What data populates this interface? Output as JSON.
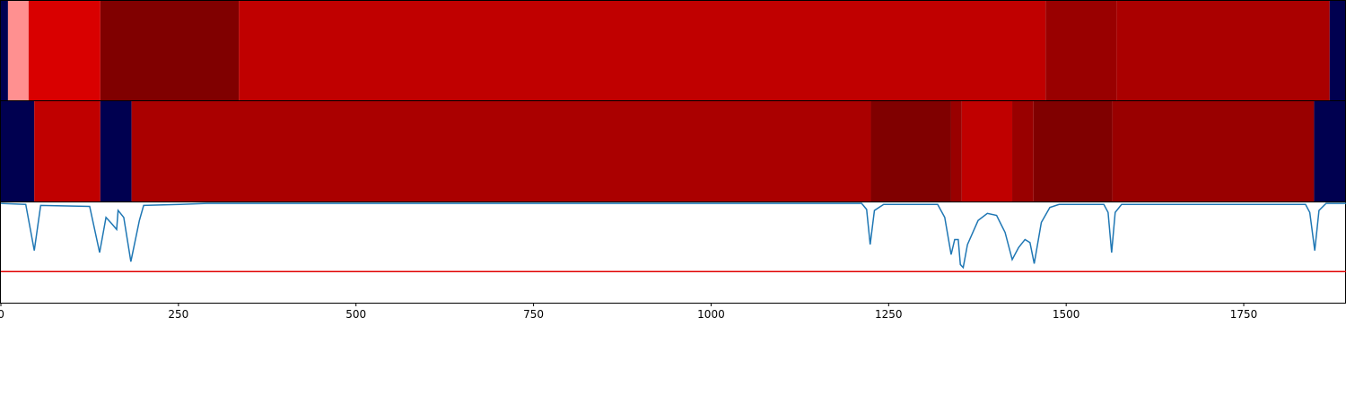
{
  "chart_data": {
    "type": "segments-and-line",
    "xlim": [
      0,
      1894
    ],
    "xticks": [
      0,
      250,
      500,
      750,
      1000,
      1250,
      1500,
      1750
    ],
    "rows": [
      {
        "segments": [
          {
            "start": 0,
            "end": 10,
            "color": "#000050"
          },
          {
            "start": 10,
            "end": 39,
            "color": "#ff9090"
          },
          {
            "start": 39,
            "end": 140,
            "color": "#d90000"
          },
          {
            "start": 140,
            "end": 335,
            "color": "#800000"
          },
          {
            "start": 335,
            "end": 1471,
            "color": "#c00000"
          },
          {
            "start": 1471,
            "end": 1571,
            "color": "#990000"
          },
          {
            "start": 1571,
            "end": 1871,
            "color": "#aa0000"
          },
          {
            "start": 1871,
            "end": 1894,
            "color": "#000050"
          }
        ]
      },
      {
        "segments": [
          {
            "start": 0,
            "end": 47,
            "color": "#000050"
          },
          {
            "start": 47,
            "end": 140,
            "color": "#c00000"
          },
          {
            "start": 140,
            "end": 184,
            "color": "#000050"
          },
          {
            "start": 184,
            "end": 1225,
            "color": "#aa0000"
          },
          {
            "start": 1225,
            "end": 1338,
            "color": "#800000"
          },
          {
            "start": 1338,
            "end": 1353,
            "color": "#990000"
          },
          {
            "start": 1353,
            "end": 1424,
            "color": "#c00000"
          },
          {
            "start": 1424,
            "end": 1454,
            "color": "#990000"
          },
          {
            "start": 1454,
            "end": 1565,
            "color": "#800000"
          },
          {
            "start": 1565,
            "end": 1849,
            "color": "#990000"
          },
          {
            "start": 1849,
            "end": 1894,
            "color": "#000050"
          }
        ]
      }
    ],
    "ylim": [
      0,
      1
    ],
    "threshold": 0.31,
    "threshold_color": "#e00000",
    "series": [
      {
        "color": "#1f77b4",
        "x": [
          0,
          35,
          47,
          56,
          125,
          139,
          148,
          157,
          163,
          165,
          173,
          183,
          195,
          201,
          252,
          290,
          1212,
          1219,
          1224,
          1230,
          1243,
          1319,
          1329,
          1338,
          1343,
          1348,
          1351,
          1355,
          1361,
          1376,
          1389,
          1402,
          1414,
          1424,
          1433,
          1442,
          1449,
          1455,
          1465,
          1477,
          1490,
          1553,
          1559,
          1564,
          1569,
          1578,
          1837,
          1843,
          1850,
          1856,
          1866,
          1894
        ],
        "values": [
          0.99,
          0.98,
          0.52,
          0.97,
          0.96,
          0.5,
          0.85,
          0.78,
          0.73,
          0.92,
          0.85,
          0.41,
          0.82,
          0.97,
          0.98,
          0.99,
          0.99,
          0.93,
          0.58,
          0.92,
          0.98,
          0.98,
          0.85,
          0.48,
          0.63,
          0.63,
          0.38,
          0.35,
          0.58,
          0.82,
          0.89,
          0.87,
          0.7,
          0.43,
          0.55,
          0.63,
          0.6,
          0.39,
          0.8,
          0.95,
          0.98,
          0.98,
          0.9,
          0.5,
          0.9,
          0.98,
          0.98,
          0.9,
          0.52,
          0.92,
          0.99,
          0.99
        ]
      }
    ]
  }
}
